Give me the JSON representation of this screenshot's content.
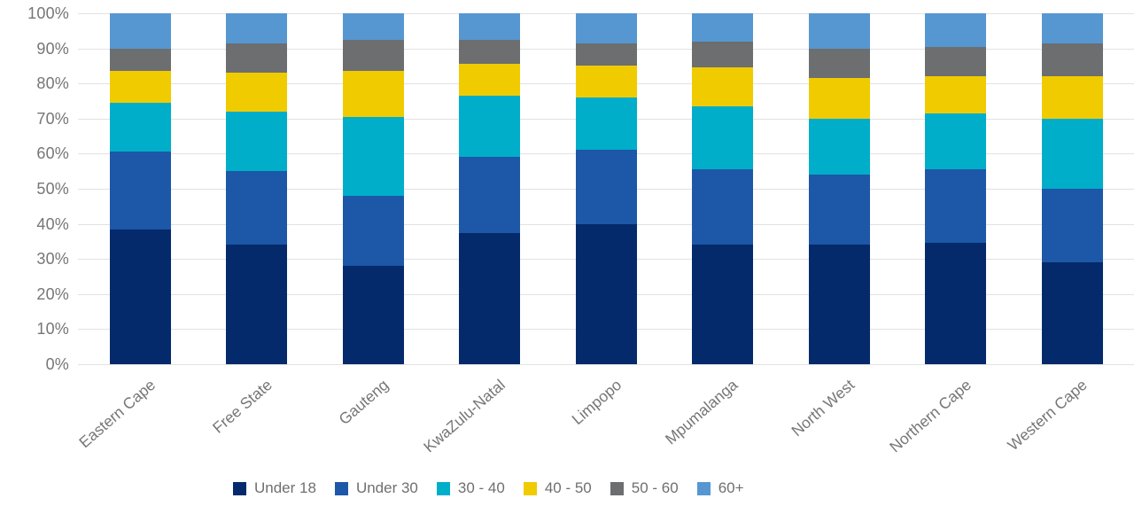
{
  "chart_data": {
    "type": "bar",
    "subtype": "100-percent-stacked-column",
    "title": "",
    "xlabel": "",
    "ylabel": "",
    "ylim": [
      0,
      100
    ],
    "grid": true,
    "legend_position": "bottom",
    "y_tick_labels": [
      "0%",
      "10%",
      "20%",
      "30%",
      "40%",
      "50%",
      "60%",
      "70%",
      "80%",
      "90%",
      "100%"
    ],
    "categories": [
      "Eastern Cape",
      "Free State",
      "Gauteng",
      "KwaZulu-Natal",
      "Limpopo",
      "Mpumalanga",
      "North West",
      "Northern Cape",
      "Western Cape"
    ],
    "series": [
      {
        "name": "Under 18",
        "color": "#042a6b",
        "values": [
          38.5,
          34.0,
          28.0,
          37.5,
          40.0,
          34.0,
          34.0,
          34.5,
          29.0
        ]
      },
      {
        "name": "Under 30",
        "color": "#1d57a7",
        "values": [
          22.0,
          21.0,
          20.0,
          21.5,
          21.0,
          21.5,
          20.0,
          21.0,
          21.0
        ]
      },
      {
        "name": "30 - 40",
        "color": "#00aec9",
        "values": [
          14.0,
          17.0,
          22.5,
          17.5,
          15.0,
          18.0,
          16.0,
          16.0,
          20.0
        ]
      },
      {
        "name": "40 - 50",
        "color": "#f0cb00",
        "values": [
          9.0,
          11.0,
          13.0,
          9.0,
          9.0,
          11.0,
          11.5,
          10.5,
          12.0
        ]
      },
      {
        "name": "50 - 60",
        "color": "#6c6e70",
        "values": [
          6.5,
          8.5,
          9.0,
          7.0,
          6.5,
          7.5,
          8.5,
          8.5,
          9.5
        ]
      },
      {
        "name": "60+",
        "color": "#5697d2",
        "values": [
          10.0,
          8.5,
          7.5,
          7.5,
          8.5,
          8.0,
          10.0,
          9.5,
          8.5
        ]
      }
    ],
    "colors": {
      "gridline": "#e2e2e2",
      "axis_text": "#767676",
      "legend_text": "#6f6f6f",
      "background": "#ffffff"
    }
  }
}
